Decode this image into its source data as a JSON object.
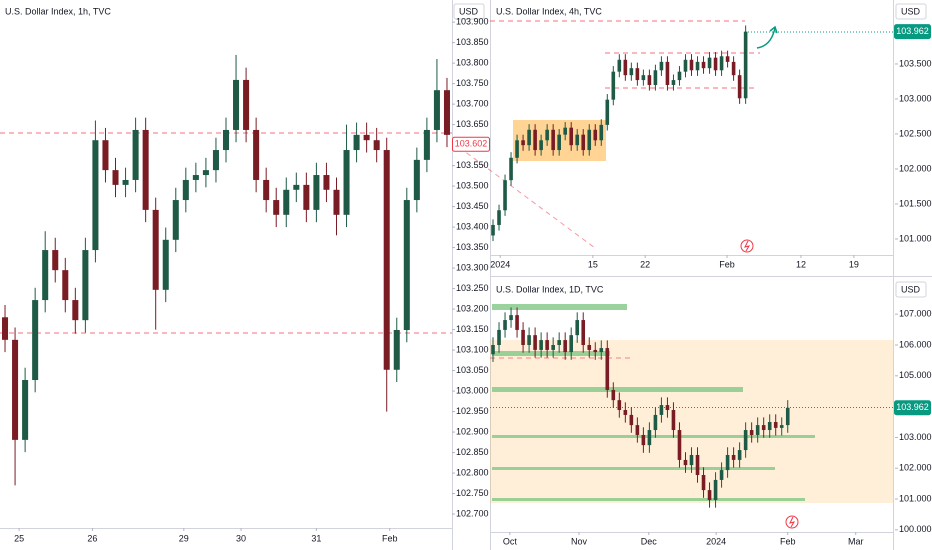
{
  "chart_data": [
    {
      "type": "candlestick",
      "title": "U.S. Dollar Index, 1h, TVC",
      "currency": "USD",
      "xlim": [
        -0.5,
        44.5
      ],
      "ylim": [
        102.666,
        103.954
      ],
      "xticks": [
        {
          "value": 1.4,
          "label": "25"
        },
        {
          "value": 8.7,
          "label": "26"
        },
        {
          "value": 17.8,
          "label": "29"
        },
        {
          "value": 23.5,
          "label": "30"
        },
        {
          "value": 31,
          "label": "31"
        },
        {
          "value": 38.3,
          "label": "Feb"
        }
      ],
      "yticks": [
        {
          "value": 103.9,
          "label": "103.900"
        },
        {
          "value": 103.85,
          "label": "103.850"
        },
        {
          "value": 103.8,
          "label": "103.800"
        },
        {
          "value": 103.75,
          "label": "103.750"
        },
        {
          "value": 103.7,
          "label": "103.700"
        },
        {
          "value": 103.65,
          "label": "103.650"
        },
        {
          "value": 103.55,
          "label": "103.550"
        },
        {
          "value": 103.5,
          "label": "103.500"
        },
        {
          "value": 103.45,
          "label": "103.450"
        },
        {
          "value": 103.4,
          "label": "103.400"
        },
        {
          "value": 103.35,
          "label": "103.350"
        },
        {
          "value": 103.3,
          "label": "103.300"
        },
        {
          "value": 103.25,
          "label": "103.250"
        },
        {
          "value": 103.2,
          "label": "103.200"
        },
        {
          "value": 103.15,
          "label": "103.150"
        },
        {
          "value": 103.1,
          "label": "103.100"
        },
        {
          "value": 103.05,
          "label": "103.050"
        },
        {
          "value": 103.0,
          "label": "103.000"
        },
        {
          "value": 102.95,
          "label": "102.950"
        },
        {
          "value": 102.9,
          "label": "102.900"
        },
        {
          "value": 102.85,
          "label": "102.850"
        },
        {
          "value": 102.8,
          "label": "102.800"
        },
        {
          "value": 102.75,
          "label": "102.750"
        },
        {
          "value": 102.7,
          "label": "102.700"
        }
      ],
      "last_price": 103.602,
      "price_color": "#f23645",
      "up_color": "#1e5a45",
      "down_color": "#7a1c24",
      "x": [
        0,
        1,
        2,
        3,
        4,
        5,
        6,
        7,
        8,
        9,
        10,
        11,
        12,
        13,
        14,
        15,
        16,
        17,
        18,
        19,
        20,
        21,
        22,
        23,
        24,
        25,
        26,
        27,
        28,
        29,
        30,
        31,
        32,
        33,
        34,
        35,
        36,
        37,
        38,
        39,
        40,
        41,
        42,
        43,
        44
      ],
      "open": [
        103.18,
        103.125,
        102.881,
        103.027,
        103.222,
        103.344,
        103.295,
        103.222,
        103.173,
        103.344,
        103.612,
        103.539,
        103.503,
        103.515,
        103.637,
        103.442,
        103.247,
        103.369,
        103.466,
        103.515,
        103.527,
        103.539,
        103.588,
        103.637,
        103.759,
        103.637,
        103.515,
        103.466,
        103.43,
        103.491,
        103.503,
        103.442,
        103.527,
        103.491,
        103.43,
        103.588,
        103.625,
        103.612,
        103.588,
        103.052,
        103.149,
        103.466,
        103.564,
        103.637,
        103.734
      ],
      "high": [
        103.21,
        103.155,
        103.057,
        103.252,
        103.39,
        103.374,
        103.325,
        103.252,
        103.374,
        103.66,
        103.642,
        103.569,
        103.545,
        103.667,
        103.667,
        103.472,
        103.399,
        103.496,
        103.545,
        103.557,
        103.569,
        103.618,
        103.667,
        103.82,
        103.789,
        103.667,
        103.545,
        103.496,
        103.521,
        103.533,
        103.533,
        103.557,
        103.557,
        103.521,
        103.65,
        103.655,
        103.655,
        103.642,
        103.618,
        103.179,
        103.496,
        103.594,
        103.667,
        103.81,
        103.764
      ],
      "low": [
        103.095,
        102.77,
        102.851,
        102.997,
        103.192,
        103.265,
        103.192,
        103.14,
        103.143,
        103.314,
        103.509,
        103.473,
        103.473,
        103.485,
        103.412,
        103.15,
        103.217,
        103.339,
        103.436,
        103.485,
        103.497,
        103.509,
        103.558,
        103.607,
        103.607,
        103.485,
        103.436,
        103.4,
        103.4,
        103.461,
        103.412,
        103.412,
        103.461,
        103.38,
        103.4,
        103.558,
        103.582,
        103.558,
        102.95,
        103.022,
        103.119,
        103.436,
        103.534,
        103.607,
        103.595
      ],
      "close": [
        103.125,
        102.881,
        103.027,
        103.222,
        103.344,
        103.295,
        103.222,
        103.173,
        103.344,
        103.612,
        103.539,
        103.503,
        103.515,
        103.637,
        103.442,
        103.247,
        103.369,
        103.466,
        103.515,
        103.527,
        103.539,
        103.588,
        103.637,
        103.759,
        103.637,
        103.515,
        103.466,
        103.43,
        103.491,
        103.503,
        103.442,
        103.527,
        103.491,
        103.43,
        103.588,
        103.625,
        103.612,
        103.588,
        103.052,
        103.149,
        103.466,
        103.564,
        103.637,
        103.734,
        103.625
      ]
    },
    {
      "type": "candlestick",
      "title": "U.S. Dollar Index, 4h, TVC",
      "currency": "USD",
      "xlim": [
        -0.5,
        66.5
      ],
      "ylim": [
        100.771,
        104.414
      ],
      "xticks": [
        {
          "value": 1.2,
          "label": "2024"
        },
        {
          "value": 16.6,
          "label": "15"
        },
        {
          "value": 25.3,
          "label": "22"
        },
        {
          "value": 38.9,
          "label": "Feb"
        },
        {
          "value": 51.2,
          "label": "12"
        },
        {
          "value": 60,
          "label": "19"
        }
      ],
      "yticks": [
        {
          "value": 103.5,
          "label": "103.500"
        },
        {
          "value": 103.0,
          "label": "103.000"
        },
        {
          "value": 102.5,
          "label": "102.500"
        },
        {
          "value": 102.0,
          "label": "102.000"
        },
        {
          "value": 101.5,
          "label": "101.500"
        },
        {
          "value": 101.0,
          "label": "101.000"
        }
      ],
      "last_price": 103.962,
      "price_color": "#089981",
      "up_color": "#1e5a45",
      "down_color": "#7a1c24",
      "x": [
        0,
        1,
        2,
        3,
        4,
        5,
        6,
        7,
        8,
        9,
        10,
        11,
        12,
        13,
        14,
        15,
        16,
        17,
        18,
        19,
        20,
        21,
        22,
        23,
        24,
        25,
        26,
        27,
        28,
        29,
        30,
        31,
        32,
        33,
        34,
        35,
        36,
        37,
        38,
        39,
        40,
        41,
        42
      ],
      "open": [
        101.05,
        101.2,
        101.41,
        101.84,
        102.16,
        102.41,
        102.34,
        102.56,
        102.27,
        102.41,
        102.56,
        102.27,
        102.49,
        102.59,
        102.34,
        102.49,
        102.27,
        102.56,
        102.41,
        102.63,
        102.99,
        103.39,
        103.56,
        103.34,
        103.44,
        103.27,
        103.34,
        103.2,
        103.41,
        103.53,
        103.2,
        103.27,
        103.39,
        103.56,
        103.41,
        103.53,
        103.44,
        103.59,
        103.41,
        103.61,
        103.53,
        103.34,
        103.01
      ],
      "high": [
        101.28,
        101.49,
        101.92,
        102.24,
        102.49,
        102.49,
        102.64,
        102.64,
        102.49,
        102.64,
        102.64,
        102.57,
        102.67,
        102.67,
        102.57,
        102.57,
        102.64,
        102.64,
        102.71,
        103.07,
        103.47,
        103.64,
        103.64,
        103.52,
        103.52,
        103.42,
        103.42,
        103.49,
        103.61,
        103.61,
        103.35,
        103.47,
        103.64,
        103.64,
        103.61,
        103.61,
        103.67,
        103.67,
        103.69,
        103.69,
        103.61,
        103.42,
        104.05
      ],
      "low": [
        100.97,
        101.12,
        101.33,
        101.76,
        102.08,
        102.26,
        102.26,
        102.19,
        102.19,
        102.33,
        102.19,
        102.19,
        102.41,
        102.26,
        102.26,
        102.19,
        102.19,
        102.33,
        102.33,
        102.55,
        102.91,
        103.31,
        103.26,
        103.26,
        103.19,
        103.19,
        103.12,
        103.12,
        103.33,
        103.12,
        103.12,
        103.19,
        103.31,
        103.33,
        103.33,
        103.36,
        103.36,
        103.33,
        103.33,
        103.45,
        103.26,
        102.93,
        102.93
      ],
      "close": [
        101.2,
        101.41,
        101.84,
        102.16,
        102.41,
        102.34,
        102.56,
        102.27,
        102.41,
        102.56,
        102.27,
        102.49,
        102.59,
        102.34,
        102.49,
        102.27,
        102.56,
        102.41,
        102.63,
        102.99,
        103.39,
        103.56,
        103.34,
        103.44,
        103.27,
        103.34,
        103.2,
        103.41,
        103.53,
        103.2,
        103.27,
        103.39,
        103.56,
        103.41,
        103.53,
        103.44,
        103.59,
        103.41,
        103.61,
        103.53,
        103.34,
        103.01,
        103.962
      ]
    },
    {
      "type": "candlestick",
      "title": "U.S. Dollar Index, 1D, TVC",
      "currency": "USD",
      "xlim": [
        -0.5,
        66.5
      ],
      "ylim": [
        99.93,
        108.11
      ],
      "xticks": [
        {
          "value": 2.8,
          "label": "Oct"
        },
        {
          "value": 14.3,
          "label": "Nov"
        },
        {
          "value": 25.9,
          "label": "Dec"
        },
        {
          "value": 37.1,
          "label": "2024"
        },
        {
          "value": 49,
          "label": "Feb"
        },
        {
          "value": 60.3,
          "label": "Mar"
        }
      ],
      "yticks": [
        {
          "value": 107.0,
          "label": "107.000"
        },
        {
          "value": 106.0,
          "label": "106.000"
        },
        {
          "value": 105.0,
          "label": "105.000"
        },
        {
          "value": 103.0,
          "label": "103.000"
        },
        {
          "value": 102.0,
          "label": "102.000"
        },
        {
          "value": 101.0,
          "label": "101.000"
        },
        {
          "value": 100.0,
          "label": "100.000"
        }
      ],
      "last_price": 103.962,
      "price_color": "#089981",
      "up_color": "#1e5a45",
      "down_color": "#7a1c24",
      "x": [
        0,
        1,
        2,
        3,
        4,
        5,
        6,
        7,
        8,
        9,
        10,
        11,
        12,
        13,
        14,
        15,
        16,
        17,
        18,
        19,
        20,
        21,
        22,
        23,
        24,
        25,
        26,
        27,
        28,
        29,
        30,
        31,
        32,
        33,
        34,
        35,
        36,
        37,
        38,
        39,
        40,
        41,
        42,
        43,
        44,
        45,
        46,
        47,
        48,
        49
      ],
      "open": [
        105.7,
        106.0,
        106.49,
        106.81,
        106.97,
        106.49,
        106.0,
        106.32,
        105.84,
        106.16,
        105.84,
        106.0,
        106.16,
        105.77,
        106.32,
        106.81,
        106.0,
        105.84,
        105.77,
        105.9,
        104.54,
        104.21,
        103.89,
        103.73,
        103.4,
        103.08,
        102.75,
        103.24,
        103.73,
        104.05,
        103.89,
        103.24,
        102.27,
        102.1,
        102.43,
        101.78,
        101.29,
        100.97,
        101.62,
        101.94,
        102.43,
        102.27,
        102.59,
        103.24,
        103.08,
        103.4,
        103.24,
        103.5,
        103.31,
        103.4
      ],
      "high": [
        106.25,
        106.74,
        107.06,
        107.22,
        107.22,
        106.74,
        106.57,
        106.57,
        106.41,
        106.41,
        106.25,
        106.41,
        106.41,
        106.57,
        107.06,
        107.06,
        106.25,
        106.09,
        106.15,
        106.15,
        104.79,
        104.46,
        104.14,
        103.98,
        103.65,
        103.33,
        103.49,
        103.98,
        104.3,
        104.3,
        104.14,
        103.49,
        102.52,
        102.68,
        102.68,
        102.03,
        101.54,
        101.87,
        102.19,
        102.68,
        102.68,
        102.84,
        103.49,
        103.49,
        103.65,
        103.65,
        103.75,
        103.75,
        103.65,
        104.21
      ],
      "low": [
        105.45,
        105.75,
        106.24,
        106.56,
        106.24,
        105.75,
        105.75,
        105.59,
        105.59,
        105.59,
        105.59,
        105.75,
        105.52,
        105.52,
        106.07,
        105.75,
        105.59,
        105.52,
        105.52,
        104.29,
        103.96,
        103.64,
        103.48,
        103.15,
        102.83,
        102.5,
        102.5,
        102.99,
        103.48,
        103.64,
        102.99,
        102.02,
        101.85,
        101.85,
        101.53,
        101.04,
        100.72,
        100.72,
        101.37,
        101.69,
        102.02,
        102.02,
        102.34,
        102.83,
        102.83,
        102.99,
        102.99,
        103.06,
        103.06,
        103.15
      ],
      "close": [
        106.0,
        106.49,
        106.81,
        106.97,
        106.49,
        106.0,
        106.32,
        105.84,
        106.16,
        105.84,
        106.0,
        106.16,
        105.77,
        106.32,
        106.81,
        106.0,
        105.84,
        105.77,
        105.9,
        104.54,
        104.21,
        103.89,
        103.73,
        103.4,
        103.08,
        102.75,
        103.24,
        103.73,
        104.05,
        103.89,
        103.24,
        102.27,
        102.1,
        102.43,
        101.78,
        101.29,
        100.97,
        101.62,
        101.94,
        102.43,
        102.27,
        102.59,
        103.24,
        103.08,
        103.4,
        103.24,
        103.5,
        103.31,
        103.4,
        103.962
      ]
    }
  ]
}
